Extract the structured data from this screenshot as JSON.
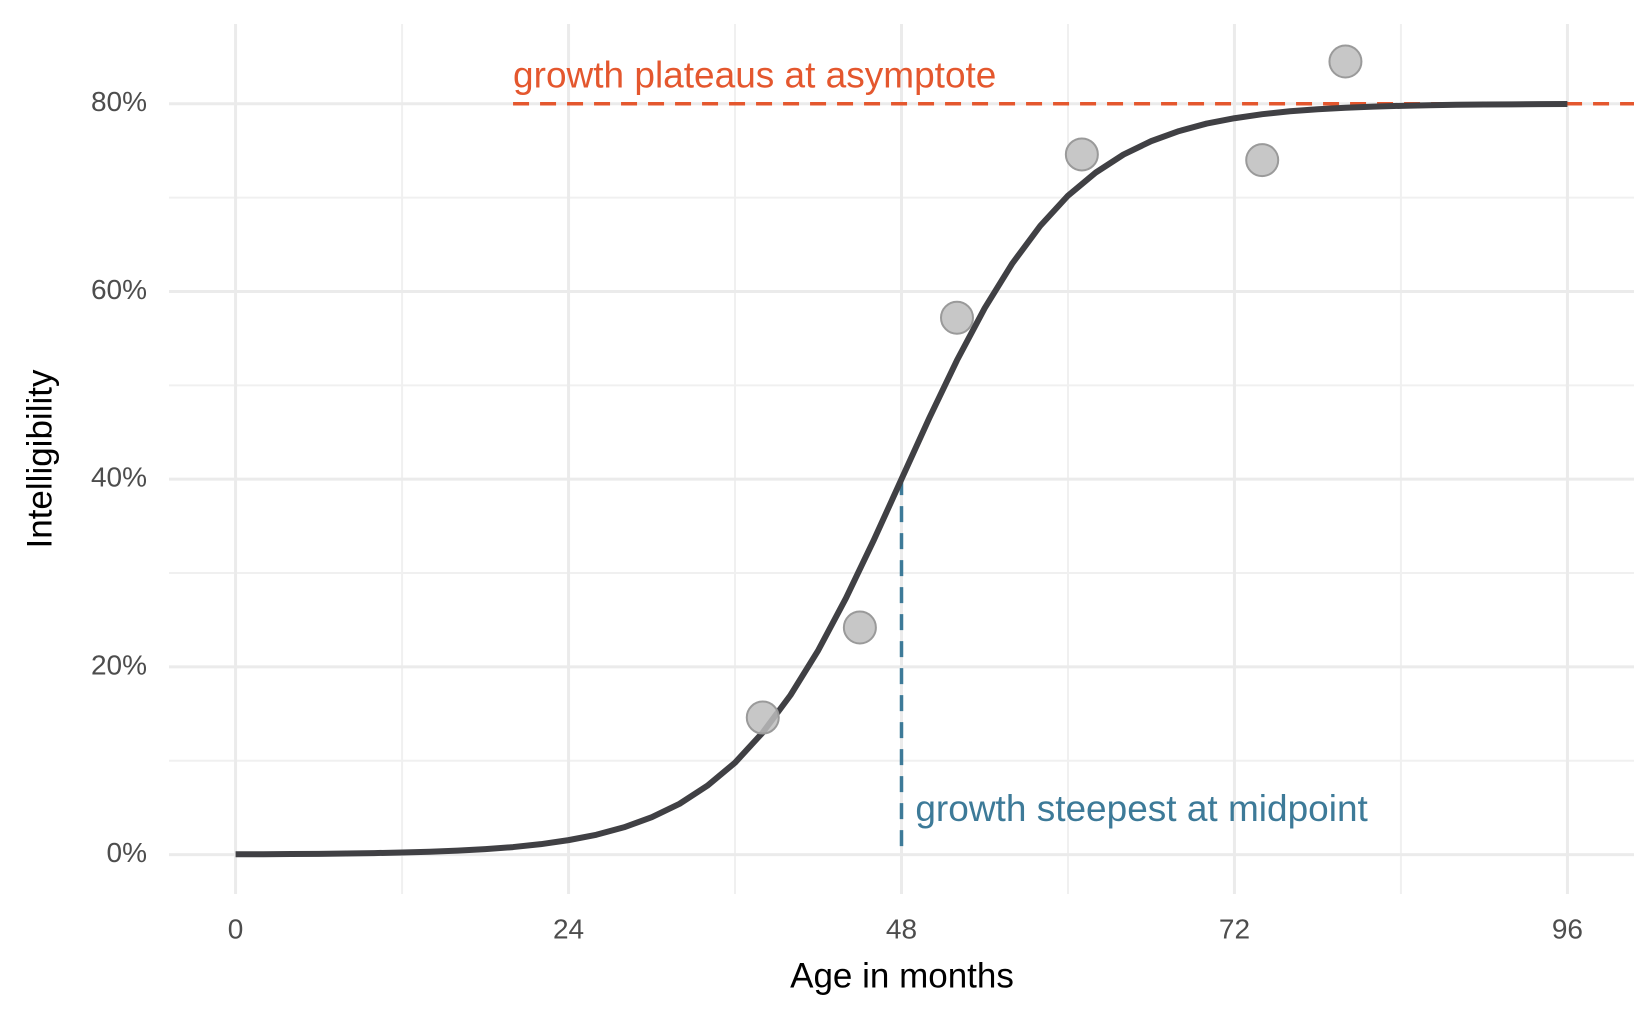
{
  "chart_data": {
    "type": "scatter",
    "x_label": "Age in months",
    "y_label": "Intelligibility",
    "xlim": [
      -4.8,
      100.8
    ],
    "ylim": [
      -4.2,
      88.5
    ],
    "xticks": [
      0,
      24,
      48,
      72,
      96
    ],
    "x_minor_ticks": [
      12,
      36,
      60,
      84
    ],
    "yticks": [
      {
        "value": 0,
        "label": "0%"
      },
      {
        "value": 20,
        "label": "20%"
      },
      {
        "value": 40,
        "label": "40%"
      },
      {
        "value": 60,
        "label": "60%"
      },
      {
        "value": 80,
        "label": "80%"
      }
    ],
    "y_minor_ticks": [
      10,
      30,
      50,
      70
    ],
    "grid": true,
    "points": {
      "color": "#bdbdbd",
      "x": [
        38,
        45,
        52,
        61,
        74,
        80
      ],
      "values": [
        14.6,
        24.2,
        57.2,
        74.6,
        74.0,
        84.5
      ]
    },
    "curve": {
      "color": "#404044",
      "x": [
        0,
        2,
        4,
        6,
        8,
        10,
        12,
        14,
        16,
        18,
        20,
        22,
        24,
        26,
        28,
        30,
        32,
        34,
        36,
        38,
        40,
        42,
        44,
        46,
        48,
        50,
        52,
        54,
        56,
        58,
        60,
        62,
        64,
        66,
        68,
        70,
        72,
        74,
        76,
        78,
        80,
        82,
        84,
        86,
        88,
        90,
        92,
        94,
        96
      ],
      "values": [
        0.03,
        0.04,
        0.06,
        0.08,
        0.11,
        0.16,
        0.22,
        0.3,
        0.42,
        0.58,
        0.8,
        1.11,
        1.54,
        2.11,
        2.91,
        3.98,
        5.41,
        7.33,
        9.79,
        13.01,
        16.99,
        21.77,
        27.33,
        33.5,
        40,
        46.5,
        52.67,
        58.23,
        63.01,
        66.99,
        70.21,
        72.67,
        74.59,
        76.02,
        77.09,
        77.89,
        78.46,
        78.89,
        79.2,
        79.42,
        79.58,
        79.7,
        79.78,
        79.84,
        79.89,
        79.92,
        79.94,
        79.96,
        79.97
      ]
    },
    "asymptote": {
      "value": 80,
      "from_x": 20,
      "color": "#e4572e",
      "text": "growth plateaus at asymptote",
      "text_x": 20,
      "text_y": 82.8
    },
    "midpoint": {
      "value": 48,
      "to_y": 40,
      "color": "#3d7a98",
      "text": "growth steepest at midpoint",
      "text_x": 49,
      "text_y": 4.6
    }
  }
}
